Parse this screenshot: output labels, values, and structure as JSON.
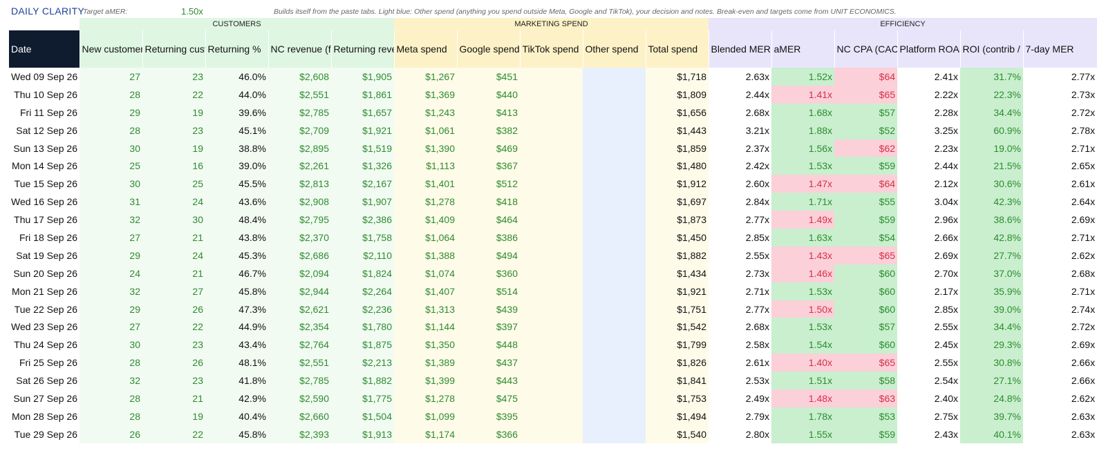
{
  "header": {
    "app_title": "DAILY CLARITY",
    "target_label": "Target aMER:",
    "target_value": "1.50x",
    "notes": "Builds itself from the paste tabs. Light blue: Other spend (anything you spend outside Meta, Google and TikTok), your decision and notes. Break-even and targets come from UNIT ECONOMICS."
  },
  "groups": {
    "customers": "CUSTOMERS",
    "marketing": "MARKETING SPEND",
    "efficiency": "EFFICIENCY"
  },
  "columns": [
    "Date",
    "New customers",
    "Returning customers",
    "Returning %",
    "NC revenue (first-time)",
    "Returning revenue",
    "Meta spend",
    "Google spend",
    "TikTok spend",
    "Other spend",
    "Total spend",
    "Blended MER",
    "aMER",
    "NC CPA (CAC)",
    "Platform ROAS",
    "ROI (contrib / spend)",
    "7-day MER"
  ],
  "colors": {
    "good_fill": "#c9efcf",
    "bad_fill": "#fbd0d8",
    "good_text": "#2e8b2e",
    "bad_text": "#d6304a",
    "header_dark": "#0f1b2e"
  },
  "rows": [
    {
      "date": "Wed 09 Sep 26",
      "new": "27",
      "ret": "23",
      "ret_pct": "46.0%",
      "nc_rev": "$2,608",
      "ret_rev": "$1,905",
      "meta": "$1,267",
      "google": "$451",
      "tiktok": "",
      "other": "",
      "total": "$1,718",
      "mer": "2.63x",
      "amer": "1.52x",
      "amer_ok": true,
      "cpa": "$64",
      "cpa_ok": false,
      "roas": "2.41x",
      "roi": "31.7%",
      "mer7": "2.77x"
    },
    {
      "date": "Thu 10 Sep 26",
      "new": "28",
      "ret": "22",
      "ret_pct": "44.0%",
      "nc_rev": "$2,551",
      "ret_rev": "$1,861",
      "meta": "$1,369",
      "google": "$440",
      "tiktok": "",
      "other": "",
      "total": "$1,809",
      "mer": "2.44x",
      "amer": "1.41x",
      "amer_ok": false,
      "cpa": "$65",
      "cpa_ok": false,
      "roas": "2.22x",
      "roi": "22.3%",
      "mer7": "2.73x"
    },
    {
      "date": "Fri 11 Sep 26",
      "new": "29",
      "ret": "19",
      "ret_pct": "39.6%",
      "nc_rev": "$2,785",
      "ret_rev": "$1,657",
      "meta": "$1,243",
      "google": "$413",
      "tiktok": "",
      "other": "",
      "total": "$1,656",
      "mer": "2.68x",
      "amer": "1.68x",
      "amer_ok": true,
      "cpa": "$57",
      "cpa_ok": true,
      "roas": "2.28x",
      "roi": "34.4%",
      "mer7": "2.72x"
    },
    {
      "date": "Sat 12 Sep 26",
      "new": "28",
      "ret": "23",
      "ret_pct": "45.1%",
      "nc_rev": "$2,709",
      "ret_rev": "$1,921",
      "meta": "$1,061",
      "google": "$382",
      "tiktok": "",
      "other": "",
      "total": "$1,443",
      "mer": "3.21x",
      "amer": "1.88x",
      "amer_ok": true,
      "cpa": "$52",
      "cpa_ok": true,
      "roas": "3.25x",
      "roi": "60.9%",
      "mer7": "2.78x"
    },
    {
      "date": "Sun 13 Sep 26",
      "new": "30",
      "ret": "19",
      "ret_pct": "38.8%",
      "nc_rev": "$2,895",
      "ret_rev": "$1,519",
      "meta": "$1,390",
      "google": "$469",
      "tiktok": "",
      "other": "",
      "total": "$1,859",
      "mer": "2.37x",
      "amer": "1.56x",
      "amer_ok": true,
      "cpa": "$62",
      "cpa_ok": false,
      "roas": "2.23x",
      "roi": "19.0%",
      "mer7": "2.71x"
    },
    {
      "date": "Mon 14 Sep 26",
      "new": "25",
      "ret": "16",
      "ret_pct": "39.0%",
      "nc_rev": "$2,261",
      "ret_rev": "$1,326",
      "meta": "$1,113",
      "google": "$367",
      "tiktok": "",
      "other": "",
      "total": "$1,480",
      "mer": "2.42x",
      "amer": "1.53x",
      "amer_ok": true,
      "cpa": "$59",
      "cpa_ok": true,
      "roas": "2.44x",
      "roi": "21.5%",
      "mer7": "2.65x"
    },
    {
      "date": "Tue 15 Sep 26",
      "new": "30",
      "ret": "25",
      "ret_pct": "45.5%",
      "nc_rev": "$2,813",
      "ret_rev": "$2,167",
      "meta": "$1,401",
      "google": "$512",
      "tiktok": "",
      "other": "",
      "total": "$1,912",
      "mer": "2.60x",
      "amer": "1.47x",
      "amer_ok": false,
      "cpa": "$64",
      "cpa_ok": false,
      "roas": "2.12x",
      "roi": "30.6%",
      "mer7": "2.61x"
    },
    {
      "date": "Wed 16 Sep 26",
      "new": "31",
      "ret": "24",
      "ret_pct": "43.6%",
      "nc_rev": "$2,908",
      "ret_rev": "$1,907",
      "meta": "$1,278",
      "google": "$418",
      "tiktok": "",
      "other": "",
      "total": "$1,697",
      "mer": "2.84x",
      "amer": "1.71x",
      "amer_ok": true,
      "cpa": "$55",
      "cpa_ok": true,
      "roas": "3.04x",
      "roi": "42.3%",
      "mer7": "2.64x"
    },
    {
      "date": "Thu 17 Sep 26",
      "new": "32",
      "ret": "30",
      "ret_pct": "48.4%",
      "nc_rev": "$2,795",
      "ret_rev": "$2,386",
      "meta": "$1,409",
      "google": "$464",
      "tiktok": "",
      "other": "",
      "total": "$1,873",
      "mer": "2.77x",
      "amer": "1.49x",
      "amer_ok": false,
      "cpa": "$59",
      "cpa_ok": true,
      "roas": "2.96x",
      "roi": "38.6%",
      "mer7": "2.69x"
    },
    {
      "date": "Fri 18 Sep 26",
      "new": "27",
      "ret": "21",
      "ret_pct": "43.8%",
      "nc_rev": "$2,370",
      "ret_rev": "$1,758",
      "meta": "$1,064",
      "google": "$386",
      "tiktok": "",
      "other": "",
      "total": "$1,450",
      "mer": "2.85x",
      "amer": "1.63x",
      "amer_ok": true,
      "cpa": "$54",
      "cpa_ok": true,
      "roas": "2.66x",
      "roi": "42.8%",
      "mer7": "2.71x"
    },
    {
      "date": "Sat 19 Sep 26",
      "new": "29",
      "ret": "24",
      "ret_pct": "45.3%",
      "nc_rev": "$2,686",
      "ret_rev": "$2,110",
      "meta": "$1,388",
      "google": "$494",
      "tiktok": "",
      "other": "",
      "total": "$1,882",
      "mer": "2.55x",
      "amer": "1.43x",
      "amer_ok": false,
      "cpa": "$65",
      "cpa_ok": false,
      "roas": "2.69x",
      "roi": "27.7%",
      "mer7": "2.62x"
    },
    {
      "date": "Sun 20 Sep 26",
      "new": "24",
      "ret": "21",
      "ret_pct": "46.7%",
      "nc_rev": "$2,094",
      "ret_rev": "$1,824",
      "meta": "$1,074",
      "google": "$360",
      "tiktok": "",
      "other": "",
      "total": "$1,434",
      "mer": "2.73x",
      "amer": "1.46x",
      "amer_ok": false,
      "cpa": "$60",
      "cpa_ok": true,
      "roas": "2.70x",
      "roi": "37.0%",
      "mer7": "2.68x"
    },
    {
      "date": "Mon 21 Sep 26",
      "new": "32",
      "ret": "27",
      "ret_pct": "45.8%",
      "nc_rev": "$2,944",
      "ret_rev": "$2,264",
      "meta": "$1,407",
      "google": "$514",
      "tiktok": "",
      "other": "",
      "total": "$1,921",
      "mer": "2.71x",
      "amer": "1.53x",
      "amer_ok": true,
      "cpa": "$60",
      "cpa_ok": true,
      "roas": "2.17x",
      "roi": "35.9%",
      "mer7": "2.71x"
    },
    {
      "date": "Tue 22 Sep 26",
      "new": "29",
      "ret": "26",
      "ret_pct": "47.3%",
      "nc_rev": "$2,621",
      "ret_rev": "$2,236",
      "meta": "$1,313",
      "google": "$439",
      "tiktok": "",
      "other": "",
      "total": "$1,751",
      "mer": "2.77x",
      "amer": "1.50x",
      "amer_ok": false,
      "cpa": "$60",
      "cpa_ok": true,
      "roas": "2.85x",
      "roi": "39.0%",
      "mer7": "2.74x"
    },
    {
      "date": "Wed 23 Sep 26",
      "new": "27",
      "ret": "22",
      "ret_pct": "44.9%",
      "nc_rev": "$2,354",
      "ret_rev": "$1,780",
      "meta": "$1,144",
      "google": "$397",
      "tiktok": "",
      "other": "",
      "total": "$1,542",
      "mer": "2.68x",
      "amer": "1.53x",
      "amer_ok": true,
      "cpa": "$57",
      "cpa_ok": true,
      "roas": "2.55x",
      "roi": "34.4%",
      "mer7": "2.72x"
    },
    {
      "date": "Thu 24 Sep 26",
      "new": "30",
      "ret": "23",
      "ret_pct": "43.4%",
      "nc_rev": "$2,764",
      "ret_rev": "$1,875",
      "meta": "$1,350",
      "google": "$448",
      "tiktok": "",
      "other": "",
      "total": "$1,799",
      "mer": "2.58x",
      "amer": "1.54x",
      "amer_ok": true,
      "cpa": "$60",
      "cpa_ok": true,
      "roas": "2.45x",
      "roi": "29.3%",
      "mer7": "2.69x"
    },
    {
      "date": "Fri 25 Sep 26",
      "new": "28",
      "ret": "26",
      "ret_pct": "48.1%",
      "nc_rev": "$2,551",
      "ret_rev": "$2,213",
      "meta": "$1,389",
      "google": "$437",
      "tiktok": "",
      "other": "",
      "total": "$1,826",
      "mer": "2.61x",
      "amer": "1.40x",
      "amer_ok": false,
      "cpa": "$65",
      "cpa_ok": false,
      "roas": "2.55x",
      "roi": "30.8%",
      "mer7": "2.66x"
    },
    {
      "date": "Sat 26 Sep 26",
      "new": "32",
      "ret": "23",
      "ret_pct": "41.8%",
      "nc_rev": "$2,785",
      "ret_rev": "$1,882",
      "meta": "$1,399",
      "google": "$443",
      "tiktok": "",
      "other": "",
      "total": "$1,841",
      "mer": "2.53x",
      "amer": "1.51x",
      "amer_ok": true,
      "cpa": "$58",
      "cpa_ok": true,
      "roas": "2.54x",
      "roi": "27.1%",
      "mer7": "2.66x"
    },
    {
      "date": "Sun 27 Sep 26",
      "new": "28",
      "ret": "21",
      "ret_pct": "42.9%",
      "nc_rev": "$2,590",
      "ret_rev": "$1,775",
      "meta": "$1,278",
      "google": "$475",
      "tiktok": "",
      "other": "",
      "total": "$1,753",
      "mer": "2.49x",
      "amer": "1.48x",
      "amer_ok": false,
      "cpa": "$63",
      "cpa_ok": false,
      "roas": "2.40x",
      "roi": "24.8%",
      "mer7": "2.62x"
    },
    {
      "date": "Mon 28 Sep 26",
      "new": "28",
      "ret": "19",
      "ret_pct": "40.4%",
      "nc_rev": "$2,660",
      "ret_rev": "$1,504",
      "meta": "$1,099",
      "google": "$395",
      "tiktok": "",
      "other": "",
      "total": "$1,494",
      "mer": "2.79x",
      "amer": "1.78x",
      "amer_ok": true,
      "cpa": "$53",
      "cpa_ok": true,
      "roas": "2.75x",
      "roi": "39.7%",
      "mer7": "2.63x"
    },
    {
      "date": "Tue 29 Sep 26",
      "new": "26",
      "ret": "22",
      "ret_pct": "45.8%",
      "nc_rev": "$2,393",
      "ret_rev": "$1,913",
      "meta": "$1,174",
      "google": "$366",
      "tiktok": "",
      "other": "",
      "total": "$1,540",
      "mer": "2.80x",
      "amer": "1.55x",
      "amer_ok": true,
      "cpa": "$59",
      "cpa_ok": true,
      "roas": "2.43x",
      "roi": "40.1%",
      "mer7": "2.63x"
    }
  ]
}
